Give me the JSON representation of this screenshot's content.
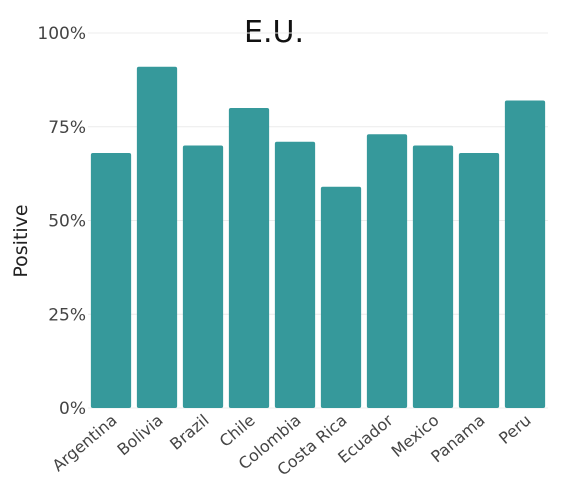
{
  "chart_data": {
    "type": "bar",
    "title": "E.U.",
    "xlabel": "",
    "ylabel": "Positive",
    "categories": [
      "Argentina",
      "Bolivia",
      "Brazil",
      "Chile",
      "Colombia",
      "Costa Rica",
      "Ecuador",
      "Mexico",
      "Panama",
      "Peru"
    ],
    "values": [
      68,
      91,
      70,
      80,
      71,
      59,
      73,
      70,
      68,
      82
    ],
    "ylim": [
      0,
      100
    ],
    "yticks": [
      0,
      25,
      50,
      75,
      100
    ],
    "ytick_labels": [
      "0%",
      "25%",
      "50%",
      "75%",
      "100%"
    ],
    "grid": true,
    "legend": "none",
    "bar_color": "#36999b"
  }
}
